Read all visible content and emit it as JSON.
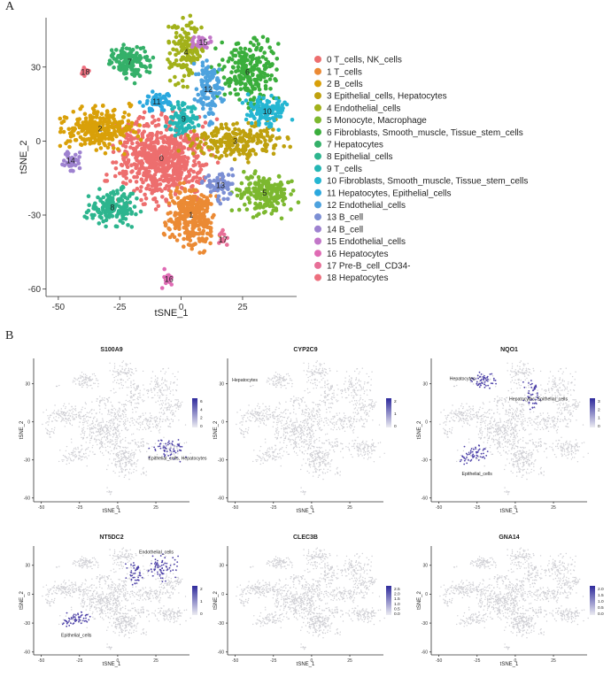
{
  "panel_a_label": "A",
  "panel_b_label": "B",
  "chart_data": [
    {
      "type": "scatter",
      "title": "",
      "xlabel": "tSNE_1",
      "ylabel": "tSNE_2",
      "xlim": [
        -55,
        47
      ],
      "ylim": [
        -63,
        50
      ],
      "xticks": [
        -50,
        -25,
        0,
        25
      ],
      "yticks": [
        -60,
        -30,
        0,
        30
      ],
      "legend_position": "right",
      "clusters": [
        {
          "id": 0,
          "label": "0  T_cells, NK_cells",
          "color": "#ED6E6E",
          "cx": -8,
          "cy": -7,
          "sx": 9,
          "sy": 8,
          "n": 650
        },
        {
          "id": 1,
          "label": "1  T_cells",
          "color": "#EB8A34",
          "cx": 4,
          "cy": -30,
          "sx": 5,
          "sy": 6,
          "n": 320
        },
        {
          "id": 2,
          "label": "2  B_cells",
          "color": "#D9A009",
          "cx": -33,
          "cy": 5,
          "sx": 7,
          "sy": 4,
          "n": 260
        },
        {
          "id": 3,
          "label": "3  Epithelial_cells, Hepatocytes",
          "color": "#BFA10E",
          "cx": 22,
          "cy": 0,
          "sx": 9,
          "sy": 3.5,
          "n": 220
        },
        {
          "id": 4,
          "label": "4  Endothelial_cells",
          "color": "#A2B11A",
          "cx": 2,
          "cy": 36,
          "sx": 3.5,
          "sy": 6,
          "n": 150
        },
        {
          "id": 5,
          "label": "5  Monocyte, Macrophage",
          "color": "#7CB82F",
          "cx": 34,
          "cy": -21,
          "sx": 6,
          "sy": 4,
          "n": 200
        },
        {
          "id": 6,
          "label": "6  Fibroblasts, Smooth_muscle, Tissue_stem_cells",
          "color": "#3AAE3C",
          "cx": 27,
          "cy": 28,
          "sx": 6,
          "sy": 6,
          "n": 230
        },
        {
          "id": 7,
          "label": "7  Hepatocytes",
          "color": "#34B069",
          "cx": -21,
          "cy": 32,
          "sx": 4,
          "sy": 3.5,
          "n": 140
        },
        {
          "id": 8,
          "label": "8  Epithelial_cells",
          "color": "#2DB58E",
          "cx": -28,
          "cy": -27,
          "sx": 4.5,
          "sy": 3.5,
          "n": 150
        },
        {
          "id": 9,
          "label": "9  T_cells",
          "color": "#24B6B4",
          "cx": 1,
          "cy": 9,
          "sx": 3,
          "sy": 3,
          "n": 90
        },
        {
          "id": 10,
          "label": "10 Fibroblasts, Smooth_muscle, Tissue_stem_cells",
          "color": "#25B6D2",
          "cx": 35,
          "cy": 12,
          "sx": 4,
          "sy": 3,
          "n": 110
        },
        {
          "id": 11,
          "label": "11 Hepatocytes, Epithelial_cells",
          "color": "#2BA8DE",
          "cx": -10,
          "cy": 16,
          "sx": 3,
          "sy": 2,
          "n": 50
        },
        {
          "id": 12,
          "label": "12 Endothelial_cells",
          "color": "#4DA2DE",
          "cx": 11,
          "cy": 21,
          "sx": 2.5,
          "sy": 6,
          "n": 110
        },
        {
          "id": 13,
          "label": "13 B_cell",
          "color": "#7C8FD4",
          "cx": 16,
          "cy": -18,
          "sx": 3,
          "sy": 3,
          "n": 60
        },
        {
          "id": 14,
          "label": "14 B_cell",
          "color": "#9E82D0",
          "cx": -45,
          "cy": -8,
          "sx": 1.8,
          "sy": 2.5,
          "n": 40
        },
        {
          "id": 15,
          "label": "15 Endothelial_cells",
          "color": "#C276C8",
          "cx": 9,
          "cy": 40,
          "sx": 2,
          "sy": 1.5,
          "n": 30
        },
        {
          "id": 16,
          "label": "16 Hepatocytes",
          "color": "#DF6BB4",
          "cx": -5,
          "cy": -56,
          "sx": 1.2,
          "sy": 2,
          "n": 20
        },
        {
          "id": 17,
          "label": "17 Pre-B_cell_CD34-",
          "color": "#E76F97",
          "cx": 17,
          "cy": -40,
          "sx": 1.2,
          "sy": 1.6,
          "n": 15
        },
        {
          "id": 18,
          "label": "18 Hepatocytes",
          "color": "#ED6F7E",
          "cx": -39,
          "cy": 28,
          "sx": 1,
          "sy": 0.8,
          "n": 10
        }
      ]
    },
    {
      "type": "scatter",
      "title": "S100A9",
      "xlabel": "tSNE_1",
      "ylabel": "tSNE_2",
      "xlim": [
        -55,
        47
      ],
      "ylim": [
        -63,
        50
      ],
      "xticks": [
        -50,
        -25,
        0,
        25
      ],
      "yticks": [
        -60,
        -30,
        0,
        30
      ],
      "colorbar": {
        "ticks": [
          "6",
          "4",
          "2",
          "0"
        ],
        "max": 6
      },
      "highlight_clusters": [
        5
      ],
      "annotations": [
        {
          "text": "Epithelial_cells, Hepatocytes",
          "x": 20,
          "y": -30
        }
      ]
    },
    {
      "type": "scatter",
      "title": "CYP2C9",
      "xlabel": "tSNE_1",
      "ylabel": "tSNE_2",
      "xlim": [
        -55,
        47
      ],
      "ylim": [
        -63,
        50
      ],
      "xticks": [
        -50,
        -25,
        0,
        25
      ],
      "yticks": [
        -60,
        -30,
        0,
        30
      ],
      "colorbar": {
        "ticks": [
          "2",
          "1",
          "0"
        ],
        "max": 2
      },
      "highlight_clusters": [],
      "annotations": [
        {
          "text": "Hepatocytes",
          "x": -52,
          "y": 32
        }
      ]
    },
    {
      "type": "scatter",
      "title": "NQO1",
      "xlabel": "tSNE_1",
      "ylabel": "tSNE_2",
      "xlim": [
        -55,
        47
      ],
      "ylim": [
        -63,
        50
      ],
      "xticks": [
        -50,
        -25,
        0,
        25
      ],
      "yticks": [
        -60,
        -30,
        0,
        30
      ],
      "colorbar": {
        "ticks": [
          "3",
          "2",
          "1",
          "0"
        ],
        "max": 3
      },
      "highlight_clusters": [
        7,
        8,
        12
      ],
      "annotations": [
        {
          "text": "Hepatocytes",
          "x": -43,
          "y": 33
        },
        {
          "text": "Hepatocytes, Epithelial_cells",
          "x": -4,
          "y": 17
        },
        {
          "text": "Epithelial_cells",
          "x": -35,
          "y": -42
        }
      ]
    },
    {
      "type": "scatter",
      "title": "NT5DC2",
      "xlabel": "tSNE_1",
      "ylabel": "tSNE_2",
      "xlim": [
        -55,
        47
      ],
      "ylim": [
        -63,
        50
      ],
      "xticks": [
        -50,
        -25,
        0,
        25
      ],
      "yticks": [
        -60,
        -30,
        0,
        30
      ],
      "colorbar": {
        "ticks": [
          "2",
          "1",
          "0"
        ],
        "max": 2
      },
      "highlight_clusters": [
        8,
        6,
        12
      ],
      "annotations": [
        {
          "text": "Endothelial_cells",
          "x": 14,
          "y": 42
        },
        {
          "text": "Epithelial_cells",
          "x": -37,
          "y": -44
        }
      ]
    },
    {
      "type": "scatter",
      "title": "CLEC3B",
      "xlabel": "tSNE_1",
      "ylabel": "tSNE_2",
      "xlim": [
        -55,
        47
      ],
      "ylim": [
        -63,
        50
      ],
      "xticks": [
        -50,
        -25,
        0,
        25
      ],
      "yticks": [
        -60,
        -30,
        0,
        30
      ],
      "colorbar": {
        "ticks": [
          "2.5",
          "2.0",
          "1.5",
          "1.0",
          "0.5",
          "0.0"
        ],
        "max": 2.5
      },
      "highlight_clusters": [],
      "annotations": []
    },
    {
      "type": "scatter",
      "title": "GNA14",
      "xlabel": "tSNE_1",
      "ylabel": "tSNE_2",
      "xlim": [
        -55,
        47
      ],
      "ylim": [
        -63,
        50
      ],
      "xticks": [
        -50,
        -25,
        0,
        25
      ],
      "yticks": [
        -60,
        -30,
        0,
        30
      ],
      "colorbar": {
        "ticks": [
          "2.0",
          "1.5",
          "1.0",
          "0.5",
          "0.0"
        ],
        "max": 2.0
      },
      "highlight_clusters": [],
      "annotations": []
    }
  ]
}
